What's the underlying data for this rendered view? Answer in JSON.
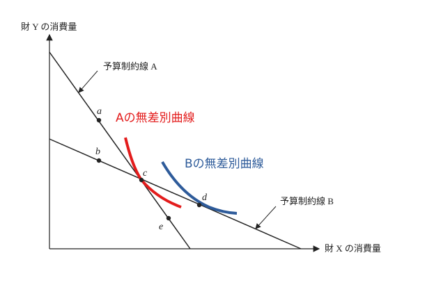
{
  "axes": {
    "y_label": "財 Y の消費量",
    "x_label": "財 X の消費量"
  },
  "budget_lines": [
    {
      "label": "予算制約線 A"
    },
    {
      "label": "予算制約線 B"
    }
  ],
  "points": [
    {
      "label": "a"
    },
    {
      "label": "b"
    },
    {
      "label": "c"
    },
    {
      "label": "d"
    },
    {
      "label": "e"
    }
  ],
  "indifference_curves": [
    {
      "label": "Aの無差別曲線"
    },
    {
      "label": "Bの無差別曲線"
    }
  ]
}
